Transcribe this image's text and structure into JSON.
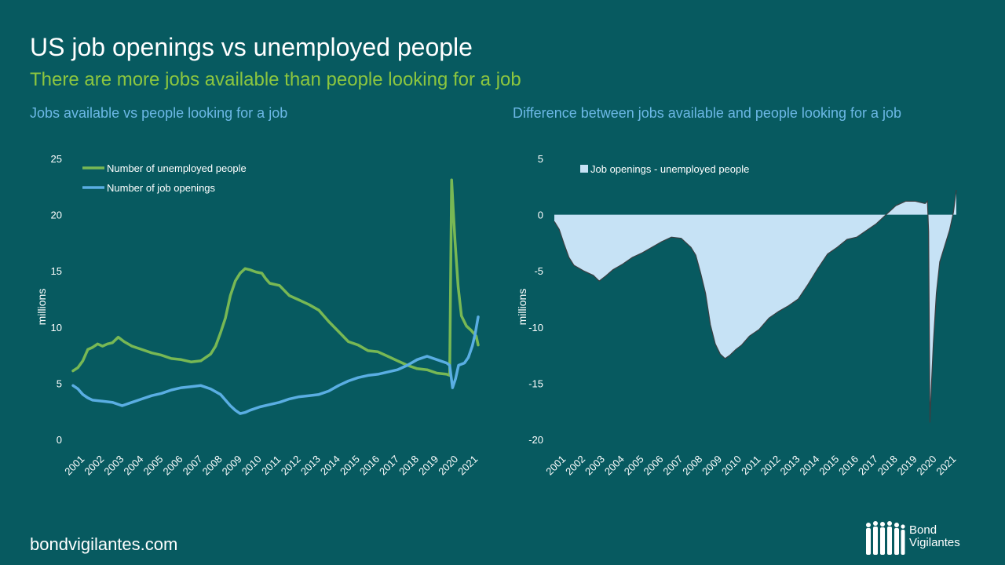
{
  "header": {
    "title": "US job openings vs unemployed people",
    "subtitle": "There are more jobs available than people looking for a job"
  },
  "footer": {
    "website": "bondvigilantes.com",
    "logo_line1": "Bond",
    "logo_line2": "Vigilantes"
  },
  "colors": {
    "background": "#075a60",
    "unemployed": "#78b854",
    "openings": "#5aaee3",
    "difference_fill": "#c6e2f5",
    "difference_line": "#3b3f42",
    "axis_text": "#ffffff",
    "panel_title": "#6cb8e6",
    "subtitle": "#8cc63f"
  },
  "chart_data": [
    {
      "type": "line",
      "title": "Jobs available vs people looking for a job",
      "ylabel": "millions",
      "xlabel": "",
      "ylim": [
        0,
        25
      ],
      "yticks": [
        0,
        5,
        10,
        15,
        20,
        25
      ],
      "xlim": [
        2001.0,
        2021.6
      ],
      "xticks": [
        "2001",
        "2002",
        "2003",
        "2004",
        "2005",
        "2006",
        "2007",
        "2008",
        "2009",
        "2010",
        "2011",
        "2012",
        "2013",
        "2014",
        "2015",
        "2016",
        "2017",
        "2018",
        "2019",
        "2020",
        "2021"
      ],
      "grid": false,
      "legend_position": "top-left",
      "series": [
        {
          "name": "Number of unemployed people",
          "color": "#78b854",
          "points": [
            [
              2001.0,
              6.1
            ],
            [
              2001.25,
              6.4
            ],
            [
              2001.5,
              7.0
            ],
            [
              2001.75,
              8.0
            ],
            [
              2002.0,
              8.2
            ],
            [
              2002.25,
              8.5
            ],
            [
              2002.5,
              8.3
            ],
            [
              2002.75,
              8.5
            ],
            [
              2003.0,
              8.6
            ],
            [
              2003.3,
              9.1
            ],
            [
              2003.6,
              8.7
            ],
            [
              2004.0,
              8.3
            ],
            [
              2004.5,
              8.0
            ],
            [
              2005.0,
              7.7
            ],
            [
              2005.5,
              7.5
            ],
            [
              2006.0,
              7.2
            ],
            [
              2006.5,
              7.1
            ],
            [
              2007.0,
              6.9
            ],
            [
              2007.5,
              7.0
            ],
            [
              2008.0,
              7.6
            ],
            [
              2008.25,
              8.3
            ],
            [
              2008.5,
              9.5
            ],
            [
              2008.75,
              10.8
            ],
            [
              2009.0,
              12.8
            ],
            [
              2009.25,
              14.1
            ],
            [
              2009.5,
              14.8
            ],
            [
              2009.75,
              15.2
            ],
            [
              2010.0,
              15.1
            ],
            [
              2010.3,
              14.9
            ],
            [
              2010.6,
              14.8
            ],
            [
              2010.8,
              14.3
            ],
            [
              2011.0,
              13.9
            ],
            [
              2011.5,
              13.7
            ],
            [
              2012.0,
              12.8
            ],
            [
              2012.5,
              12.4
            ],
            [
              2013.0,
              12.0
            ],
            [
              2013.5,
              11.5
            ],
            [
              2014.0,
              10.5
            ],
            [
              2014.5,
              9.6
            ],
            [
              2015.0,
              8.7
            ],
            [
              2015.5,
              8.4
            ],
            [
              2016.0,
              7.9
            ],
            [
              2016.5,
              7.8
            ],
            [
              2017.0,
              7.4
            ],
            [
              2017.5,
              7.0
            ],
            [
              2018.0,
              6.6
            ],
            [
              2018.5,
              6.3
            ],
            [
              2019.0,
              6.2
            ],
            [
              2019.5,
              5.9
            ],
            [
              2020.0,
              5.8
            ],
            [
              2020.15,
              5.7
            ],
            [
              2020.25,
              23.1
            ],
            [
              2020.33,
              20.5
            ],
            [
              2020.42,
              17.8
            ],
            [
              2020.58,
              13.6
            ],
            [
              2020.75,
              11.0
            ],
            [
              2021.0,
              10.1
            ],
            [
              2021.25,
              9.7
            ],
            [
              2021.5,
              9.2
            ],
            [
              2021.6,
              8.4
            ]
          ]
        },
        {
          "name": "Number of job openings",
          "color": "#5aaee3",
          "points": [
            [
              2001.0,
              4.8
            ],
            [
              2001.25,
              4.5
            ],
            [
              2001.5,
              4.0
            ],
            [
              2001.75,
              3.7
            ],
            [
              2002.0,
              3.5
            ],
            [
              2002.5,
              3.4
            ],
            [
              2003.0,
              3.3
            ],
            [
              2003.5,
              3.0
            ],
            [
              2004.0,
              3.3
            ],
            [
              2004.5,
              3.6
            ],
            [
              2005.0,
              3.9
            ],
            [
              2005.5,
              4.1
            ],
            [
              2006.0,
              4.4
            ],
            [
              2006.5,
              4.6
            ],
            [
              2007.0,
              4.7
            ],
            [
              2007.5,
              4.8
            ],
            [
              2008.0,
              4.5
            ],
            [
              2008.5,
              4.0
            ],
            [
              2009.0,
              3.0
            ],
            [
              2009.25,
              2.6
            ],
            [
              2009.5,
              2.3
            ],
            [
              2009.75,
              2.4
            ],
            [
              2010.0,
              2.6
            ],
            [
              2010.5,
              2.9
            ],
            [
              2011.0,
              3.1
            ],
            [
              2011.5,
              3.3
            ],
            [
              2012.0,
              3.6
            ],
            [
              2012.5,
              3.8
            ],
            [
              2013.0,
              3.9
            ],
            [
              2013.5,
              4.0
            ],
            [
              2014.0,
              4.3
            ],
            [
              2014.5,
              4.8
            ],
            [
              2015.0,
              5.2
            ],
            [
              2015.5,
              5.5
            ],
            [
              2016.0,
              5.7
            ],
            [
              2016.5,
              5.8
            ],
            [
              2017.0,
              6.0
            ],
            [
              2017.5,
              6.2
            ],
            [
              2018.0,
              6.6
            ],
            [
              2018.5,
              7.1
            ],
            [
              2019.0,
              7.4
            ],
            [
              2019.5,
              7.1
            ],
            [
              2020.0,
              6.8
            ],
            [
              2020.15,
              6.6
            ],
            [
              2020.3,
              4.6
            ],
            [
              2020.45,
              5.4
            ],
            [
              2020.6,
              6.6
            ],
            [
              2020.9,
              6.8
            ],
            [
              2021.1,
              7.3
            ],
            [
              2021.3,
              8.3
            ],
            [
              2021.45,
              9.4
            ],
            [
              2021.6,
              10.9
            ]
          ]
        }
      ]
    },
    {
      "type": "area",
      "title": "Difference between jobs available and people looking for a job",
      "ylabel": "millions",
      "xlabel": "",
      "ylim": [
        -20,
        5
      ],
      "yticks": [
        -20,
        -15,
        -10,
        -5,
        0,
        5
      ],
      "xlim": [
        2001.0,
        2021.6
      ],
      "xticks": [
        "2001",
        "2002",
        "2003",
        "2004",
        "2005",
        "2006",
        "2007",
        "2008",
        "2009",
        "2010",
        "2011",
        "2012",
        "2013",
        "2014",
        "2015",
        "2016",
        "2017",
        "2018",
        "2019",
        "2020",
        "2021"
      ],
      "grid": false,
      "legend_position": "top-left",
      "series": [
        {
          "name": "Job openings - unemployed people",
          "color": "#c6e2f5",
          "points": [
            [
              2001.0,
              -0.6
            ],
            [
              2001.25,
              -1.3
            ],
            [
              2001.5,
              -2.6
            ],
            [
              2001.75,
              -3.8
            ],
            [
              2002.0,
              -4.5
            ],
            [
              2002.5,
              -5.0
            ],
            [
              2003.0,
              -5.4
            ],
            [
              2003.3,
              -5.9
            ],
            [
              2003.6,
              -5.5
            ],
            [
              2004.0,
              -4.9
            ],
            [
              2004.5,
              -4.4
            ],
            [
              2005.0,
              -3.8
            ],
            [
              2005.5,
              -3.4
            ],
            [
              2006.0,
              -2.9
            ],
            [
              2006.5,
              -2.4
            ],
            [
              2007.0,
              -2.0
            ],
            [
              2007.5,
              -2.1
            ],
            [
              2008.0,
              -2.9
            ],
            [
              2008.25,
              -3.6
            ],
            [
              2008.5,
              -5.2
            ],
            [
              2008.75,
              -7.0
            ],
            [
              2009.0,
              -9.8
            ],
            [
              2009.25,
              -11.5
            ],
            [
              2009.5,
              -12.4
            ],
            [
              2009.75,
              -12.8
            ],
            [
              2010.0,
              -12.5
            ],
            [
              2010.3,
              -12.0
            ],
            [
              2010.6,
              -11.6
            ],
            [
              2011.0,
              -10.8
            ],
            [
              2011.5,
              -10.2
            ],
            [
              2012.0,
              -9.2
            ],
            [
              2012.5,
              -8.6
            ],
            [
              2013.0,
              -8.1
            ],
            [
              2013.5,
              -7.5
            ],
            [
              2014.0,
              -6.2
            ],
            [
              2014.5,
              -4.8
            ],
            [
              2015.0,
              -3.5
            ],
            [
              2015.5,
              -2.9
            ],
            [
              2016.0,
              -2.2
            ],
            [
              2016.5,
              -2.0
            ],
            [
              2017.0,
              -1.4
            ],
            [
              2017.5,
              -0.8
            ],
            [
              2018.0,
              0.0
            ],
            [
              2018.5,
              0.8
            ],
            [
              2019.0,
              1.2
            ],
            [
              2019.5,
              1.2
            ],
            [
              2020.0,
              1.0
            ],
            [
              2020.12,
              1.2
            ],
            [
              2020.18,
              -1.5
            ],
            [
              2020.25,
              -18.5
            ],
            [
              2020.33,
              -15.0
            ],
            [
              2020.42,
              -11.5
            ],
            [
              2020.58,
              -7.0
            ],
            [
              2020.75,
              -4.2
            ],
            [
              2021.0,
              -2.8
            ],
            [
              2021.25,
              -1.4
            ],
            [
              2021.45,
              0.2
            ],
            [
              2021.6,
              2.2
            ]
          ]
        }
      ]
    }
  ]
}
